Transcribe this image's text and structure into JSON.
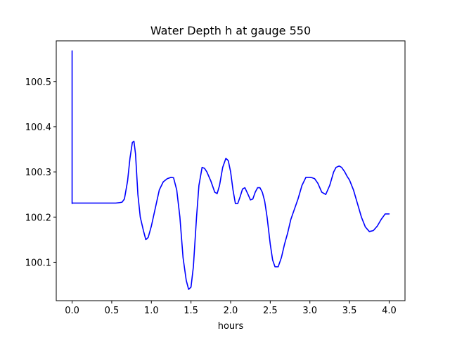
{
  "chart_data": {
    "type": "line",
    "title": "Water Depth h at gauge 550",
    "xlabel": "hours",
    "ylabel": "",
    "xlim": [
      -0.2,
      4.2
    ],
    "ylim": [
      100.015,
      100.59
    ],
    "grid": false,
    "x_ticks": [
      0.0,
      0.5,
      1.0,
      1.5,
      2.0,
      2.5,
      3.0,
      3.5,
      4.0
    ],
    "x_tick_labels": [
      "0.0",
      "0.5",
      "1.0",
      "1.5",
      "2.0",
      "2.5",
      "3.0",
      "3.5",
      "4.0"
    ],
    "y_ticks": [
      100.1,
      100.2,
      100.3,
      100.4,
      100.5
    ],
    "y_tick_labels": [
      "100.1",
      "100.2",
      "100.3",
      "100.4",
      "100.5"
    ],
    "series": [
      {
        "color": "#0000ff",
        "x": [
          0.0,
          0.0,
          0.0,
          0.1,
          0.2,
          0.3,
          0.4,
          0.5,
          0.55,
          0.6,
          0.63,
          0.66,
          0.7,
          0.73,
          0.76,
          0.78,
          0.8,
          0.83,
          0.86,
          0.9,
          0.93,
          0.96,
          1.0,
          1.05,
          1.1,
          1.15,
          1.2,
          1.25,
          1.28,
          1.32,
          1.36,
          1.4,
          1.44,
          1.47,
          1.5,
          1.53,
          1.57,
          1.6,
          1.64,
          1.67,
          1.7,
          1.75,
          1.8,
          1.83,
          1.86,
          1.9,
          1.94,
          1.97,
          2.0,
          2.03,
          2.06,
          2.09,
          2.12,
          2.15,
          2.18,
          2.22,
          2.25,
          2.28,
          2.31,
          2.34,
          2.37,
          2.4,
          2.43,
          2.46,
          2.5,
          2.53,
          2.56,
          2.6,
          2.64,
          2.68,
          2.72,
          2.76,
          2.8,
          2.85,
          2.9,
          2.95,
          3.0,
          3.03,
          3.06,
          3.1,
          3.15,
          3.2,
          3.25,
          3.3,
          3.33,
          3.37,
          3.4,
          3.44,
          3.47,
          3.5,
          3.55,
          3.6,
          3.65,
          3.7,
          3.75,
          3.8,
          3.85,
          3.9,
          3.95,
          4.0
        ],
        "y": [
          100.23,
          100.568,
          100.231,
          100.231,
          100.231,
          100.231,
          100.231,
          100.231,
          100.231,
          100.232,
          100.233,
          100.24,
          100.28,
          100.33,
          100.365,
          100.368,
          100.34,
          100.25,
          100.2,
          100.17,
          100.15,
          100.155,
          100.18,
          100.22,
          100.26,
          100.278,
          100.285,
          100.288,
          100.287,
          100.26,
          100.2,
          100.11,
          100.06,
          100.04,
          100.045,
          100.09,
          100.2,
          100.27,
          100.31,
          100.308,
          100.3,
          100.28,
          100.255,
          100.252,
          100.27,
          100.31,
          100.33,
          100.325,
          100.3,
          100.26,
          100.23,
          100.23,
          100.245,
          100.262,
          100.265,
          100.25,
          100.238,
          100.24,
          100.255,
          100.265,
          100.265,
          100.255,
          100.235,
          100.2,
          100.14,
          100.105,
          100.09,
          100.09,
          100.11,
          100.14,
          100.165,
          100.195,
          100.215,
          100.24,
          100.27,
          100.288,
          100.288,
          100.287,
          100.285,
          100.275,
          100.255,
          100.25,
          100.27,
          100.3,
          100.31,
          100.313,
          100.31,
          100.3,
          100.29,
          100.282,
          100.26,
          100.23,
          100.2,
          100.178,
          100.168,
          100.17,
          100.18,
          100.195,
          100.207,
          100.207
        ]
      }
    ]
  }
}
